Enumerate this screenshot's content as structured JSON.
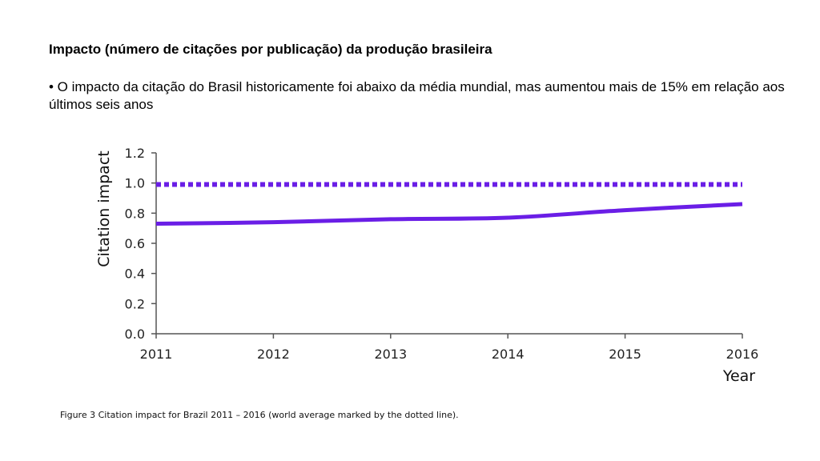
{
  "slide": {
    "title": "Impacto (número de citações por publicação) da produção brasileira",
    "bullet": "• O impacto da citação do Brasil historicamente foi abaixo da média mundial, mas aumentou mais de 15% em relação aos últimos seis anos"
  },
  "caption": "Figure 3 Citation impact for Brazil 2011 – 2016 (world average marked by the dotted line).",
  "chart_data": {
    "type": "line",
    "xlabel": "Year",
    "ylabel": "Citation impact",
    "x": [
      2011,
      2012,
      2013,
      2014,
      2015,
      2016
    ],
    "xlim": [
      2011,
      2016
    ],
    "ylim": [
      0.0,
      1.2
    ],
    "x_tick_labels": [
      "2011",
      "2012",
      "2013",
      "2014",
      "2015",
      "2016"
    ],
    "y_tick_labels": [
      "0.0",
      "0.2",
      "0.4",
      "0.6",
      "0.8",
      "1.0",
      "1.2"
    ],
    "grid": false,
    "legend": "none",
    "series": [
      {
        "values": [
          0.73,
          0.74,
          0.76,
          0.77,
          0.82,
          0.86
        ],
        "color": "#6a1ee6",
        "style": "solid"
      },
      {
        "values": [
          0.99,
          0.99,
          0.99,
          0.99,
          0.99,
          0.99
        ],
        "color": "#6a1ee6",
        "style": "dotted"
      }
    ]
  }
}
